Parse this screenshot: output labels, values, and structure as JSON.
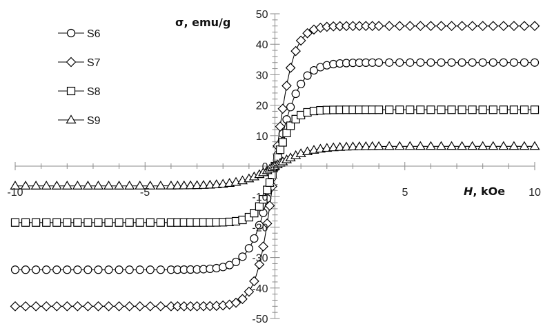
{
  "chart_data": {
    "type": "scatter",
    "title": "",
    "xlabel": "H, kOe",
    "xlabel_italic": "H",
    "xlabel_rest": ", kOe",
    "ylabel": "σ, emu/g",
    "xlim": [
      -10,
      10
    ],
    "ylim": [
      -50,
      50
    ],
    "x_ticks": [
      "-10",
      "-5",
      "0",
      "5",
      "10"
    ],
    "y_ticks": [
      "-50",
      "-40",
      "-30",
      "-20",
      "-10",
      "0",
      "10",
      "20",
      "30",
      "40",
      "50"
    ],
    "legend_position": "top-left",
    "marker_color": "#000000",
    "series": [
      {
        "name": "S6",
        "marker": "circle",
        "Ms": 34.0,
        "k": 1.08
      },
      {
        "name": "S7",
        "marker": "diamond",
        "Ms": 46.0,
        "k": 1.45
      },
      {
        "name": "S8",
        "marker": "square",
        "Ms": 18.5,
        "k": 1.5
      },
      {
        "name": "S9",
        "marker": "triangle",
        "Ms": 6.5,
        "k": 0.75
      }
    ]
  }
}
